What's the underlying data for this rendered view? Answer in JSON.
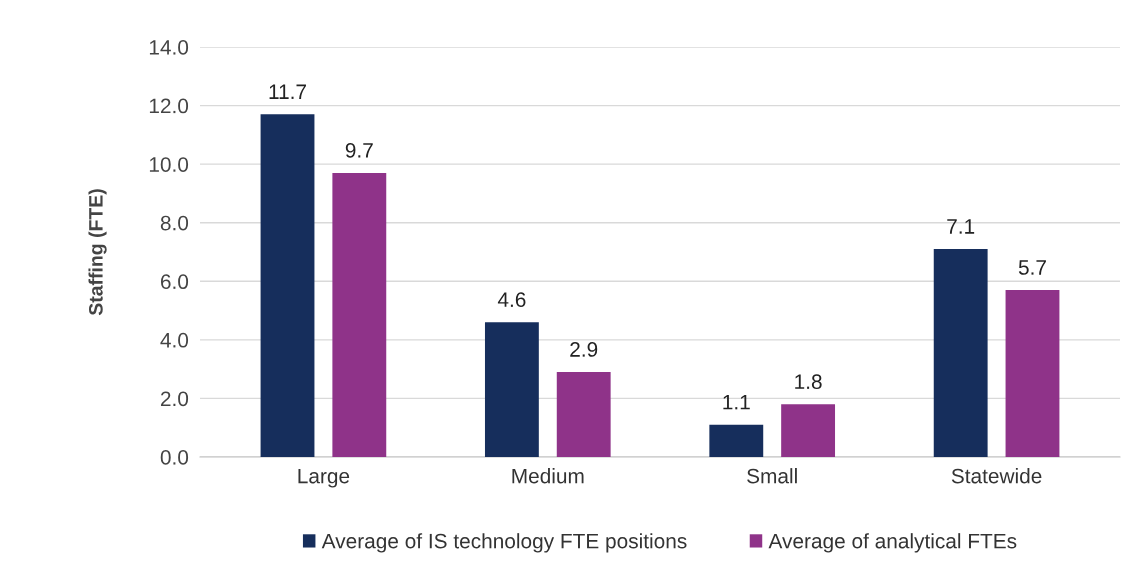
{
  "chart_data": {
    "type": "bar",
    "ylabel": "Staffing (FTE)",
    "categories": [
      "Large",
      "Medium",
      "Small",
      "Statewide"
    ],
    "series": [
      {
        "name": "Average of IS technology FTE positions",
        "color": "#162e5c",
        "values": [
          11.7,
          4.6,
          1.1,
          7.1
        ]
      },
      {
        "name": "Average of analytical FTEs",
        "color": "#8f3389",
        "values": [
          9.7,
          2.9,
          1.8,
          5.7
        ]
      }
    ],
    "ylim": [
      0,
      14
    ],
    "yticks": [
      {
        "value": 0,
        "label": "0.0"
      },
      {
        "value": 2,
        "label": "2.0"
      },
      {
        "value": 4,
        "label": "4.0"
      },
      {
        "value": 6,
        "label": "6.0"
      },
      {
        "value": 8,
        "label": "8.0"
      },
      {
        "value": 10,
        "label": "10.0"
      },
      {
        "value": 12,
        "label": "12.0"
      },
      {
        "value": 14,
        "label": "14.0"
      }
    ],
    "grid": "y",
    "legend": "bottom",
    "data_labels": true
  }
}
